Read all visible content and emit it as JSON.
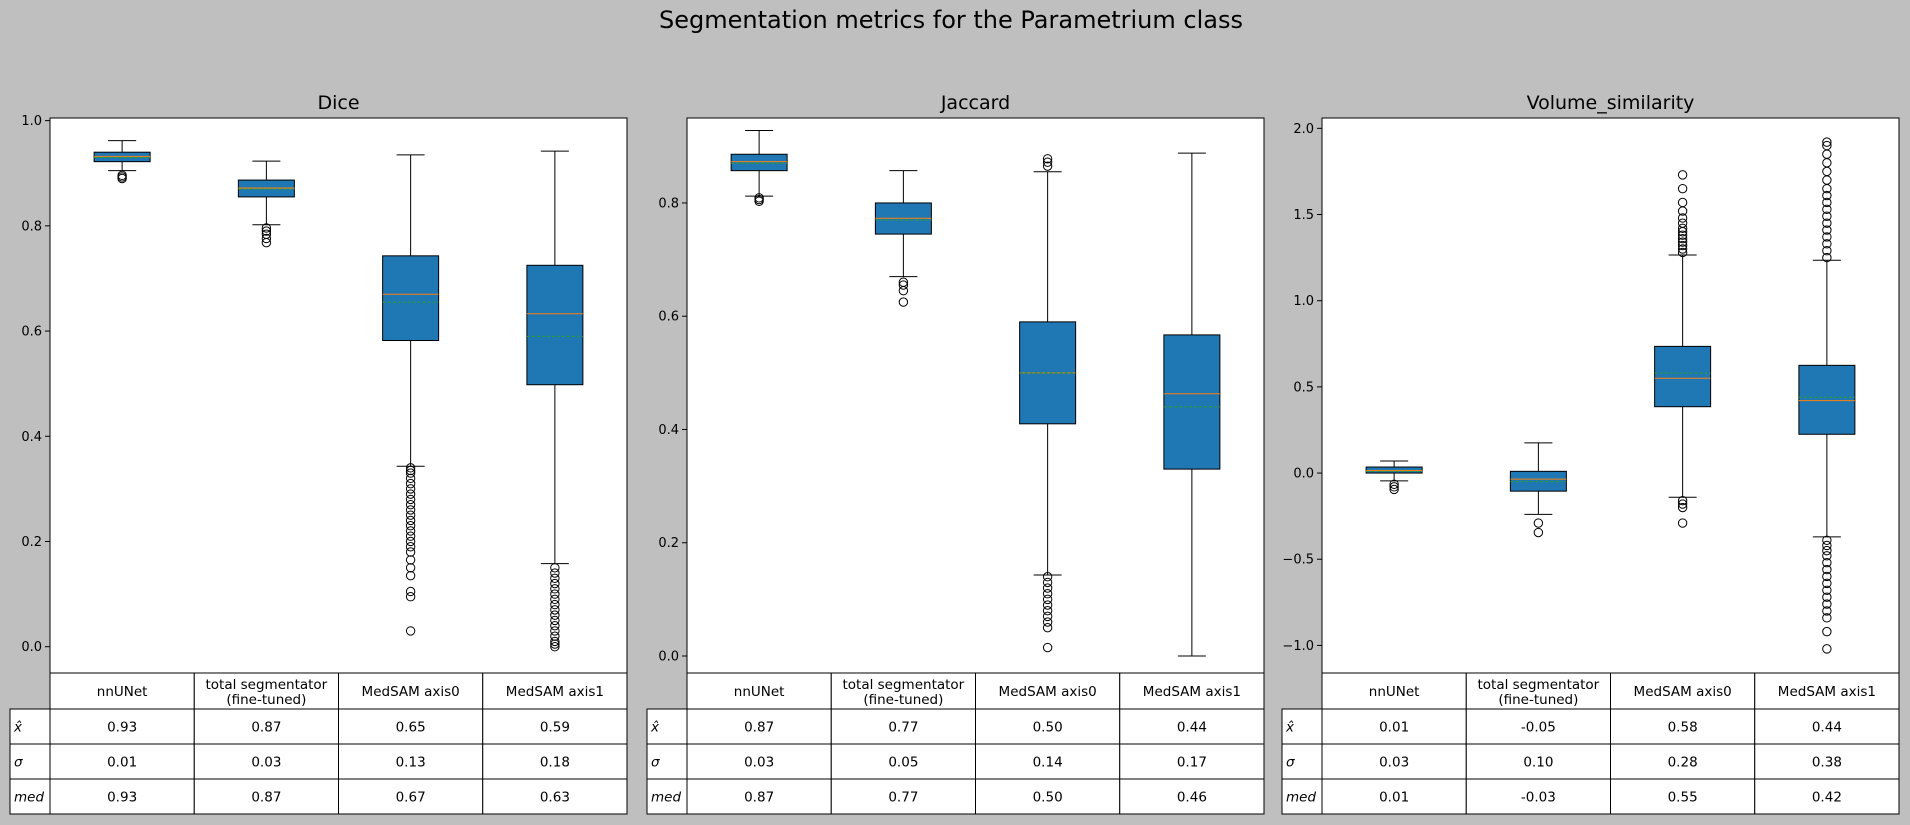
{
  "title": "Segmentation metrics for the Parametrium class",
  "colors": {
    "box": "#1f77b4",
    "median": "#ff7f0e",
    "mean": "#2ca02c",
    "background": "#bfbfbf"
  },
  "table_row_labels": [
    "x̂",
    "σ",
    "med"
  ],
  "chart_data": [
    {
      "type": "box",
      "title": "Dice",
      "ylim": [
        -0.05,
        1.005
      ],
      "yticks": [
        0.0,
        0.2,
        0.4,
        0.6,
        0.8,
        1.0
      ],
      "ytick_labels": [
        "0.0",
        "0.2",
        "0.4",
        "0.6",
        "0.8",
        "1.0"
      ],
      "categories": [
        "nnUNet",
        "total segmentator\n(fine-tuned)",
        "MedSAM axis0",
        "MedSAM axis1"
      ],
      "boxes": [
        {
          "whislo": 0.905,
          "q1": 0.922,
          "med": 0.932,
          "mean": 0.93,
          "q3": 0.94,
          "whishi": 0.962,
          "fliers": [
            0.89,
            0.893,
            0.896
          ]
        },
        {
          "whislo": 0.802,
          "q1": 0.855,
          "med": 0.872,
          "mean": 0.87,
          "q3": 0.887,
          "whishi": 0.923,
          "fliers": [
            0.768,
            0.776,
            0.784,
            0.79,
            0.796
          ]
        },
        {
          "whislo": 0.343,
          "q1": 0.582,
          "med": 0.67,
          "mean": 0.655,
          "q3": 0.743,
          "whishi": 0.935,
          "fliers": [
            0.03,
            0.095,
            0.105,
            0.135,
            0.15,
            0.165,
            0.18,
            0.19,
            0.2,
            0.21,
            0.22,
            0.23,
            0.24,
            0.25,
            0.26,
            0.27,
            0.28,
            0.29,
            0.3,
            0.31,
            0.32,
            0.33,
            0.335,
            0.34
          ]
        },
        {
          "whislo": 0.158,
          "q1": 0.498,
          "med": 0.633,
          "mean": 0.59,
          "q3": 0.725,
          "whishi": 0.942,
          "fliers": [
            0.0,
            0.005,
            0.01,
            0.02,
            0.03,
            0.04,
            0.05,
            0.06,
            0.07,
            0.08,
            0.09,
            0.1,
            0.11,
            0.12,
            0.13,
            0.14,
            0.15
          ]
        }
      ],
      "table": [
        [
          "0.93",
          "0.87",
          "0.65",
          "0.59"
        ],
        [
          "0.01",
          "0.03",
          "0.13",
          "0.18"
        ],
        [
          "0.93",
          "0.87",
          "0.67",
          "0.63"
        ]
      ]
    },
    {
      "type": "box",
      "title": "Jaccard",
      "ylim": [
        -0.03,
        0.95
      ],
      "yticks": [
        0.0,
        0.2,
        0.4,
        0.6,
        0.8
      ],
      "ytick_labels": [
        "0.0",
        "0.2",
        "0.4",
        "0.6",
        "0.8"
      ],
      "categories": [
        "nnUNet",
        "total segmentator\n(fine-tuned)",
        "MedSAM axis0",
        "MedSAM axis1"
      ],
      "boxes": [
        {
          "whislo": 0.812,
          "q1": 0.857,
          "med": 0.873,
          "mean": 0.87,
          "q3": 0.886,
          "whishi": 0.928,
          "fliers": [
            0.803,
            0.806,
            0.809
          ]
        },
        {
          "whislo": 0.67,
          "q1": 0.745,
          "med": 0.773,
          "mean": 0.77,
          "q3": 0.8,
          "whishi": 0.857,
          "fliers": [
            0.625,
            0.645,
            0.655,
            0.66
          ]
        },
        {
          "whislo": 0.143,
          "q1": 0.41,
          "med": 0.5,
          "mean": 0.5,
          "q3": 0.59,
          "whishi": 0.855,
          "fliers": [
            0.015,
            0.05,
            0.06,
            0.07,
            0.08,
            0.09,
            0.1,
            0.11,
            0.12,
            0.13,
            0.14,
            0.865,
            0.872,
            0.878
          ]
        },
        {
          "whislo": 0.0,
          "q1": 0.33,
          "med": 0.463,
          "mean": 0.44,
          "q3": 0.567,
          "whishi": 0.888,
          "fliers": []
        }
      ],
      "table": [
        [
          "0.87",
          "0.77",
          "0.50",
          "0.44"
        ],
        [
          "0.03",
          "0.05",
          "0.14",
          "0.17"
        ],
        [
          "0.87",
          "0.77",
          "0.50",
          "0.46"
        ]
      ]
    },
    {
      "type": "box",
      "title": "Volume_similarity",
      "ylim": [
        -1.16,
        2.06
      ],
      "yticks": [
        -1.0,
        -0.5,
        0.0,
        0.5,
        1.0,
        1.5,
        2.0
      ],
      "ytick_labels": [
        "−1.0",
        "−0.5",
        "0.0",
        "0.5",
        "1.0",
        "1.5",
        "2.0"
      ],
      "categories": [
        "nnUNet",
        "total segmentator\n(fine-tuned)",
        "MedSAM axis0",
        "MedSAM axis1"
      ],
      "boxes": [
        {
          "whislo": -0.045,
          "q1": 0.0,
          "med": 0.015,
          "mean": 0.01,
          "q3": 0.035,
          "whishi": 0.07,
          "fliers": [
            -0.065,
            -0.08,
            -0.095
          ]
        },
        {
          "whislo": -0.24,
          "q1": -0.105,
          "med": -0.035,
          "mean": -0.05,
          "q3": 0.01,
          "whishi": 0.175,
          "fliers": [
            -0.29,
            -0.345
          ]
        },
        {
          "whislo": -0.14,
          "q1": 0.385,
          "med": 0.55,
          "mean": 0.58,
          "q3": 0.735,
          "whishi": 1.265,
          "fliers": [
            -0.29,
            -0.2,
            -0.18,
            -0.16,
            1.28,
            1.3,
            1.32,
            1.34,
            1.36,
            1.38,
            1.4,
            1.42,
            1.45,
            1.48,
            1.52,
            1.57,
            1.65,
            1.73
          ]
        },
        {
          "whislo": -0.37,
          "q1": 0.225,
          "med": 0.42,
          "mean": 0.44,
          "q3": 0.625,
          "whishi": 1.235,
          "fliers": [
            -1.02,
            -0.92,
            -0.84,
            -0.8,
            -0.76,
            -0.72,
            -0.68,
            -0.64,
            -0.6,
            -0.56,
            -0.52,
            -0.48,
            -0.45,
            -0.42,
            -0.39,
            1.25,
            1.29,
            1.33,
            1.37,
            1.41,
            1.45,
            1.49,
            1.53,
            1.57,
            1.61,
            1.65,
            1.7,
            1.75,
            1.8,
            1.85,
            1.9,
            1.92
          ]
        }
      ],
      "table": [
        [
          "0.01",
          "-0.05",
          "0.58",
          "0.44"
        ],
        [
          "0.03",
          "0.10",
          "0.28",
          "0.38"
        ],
        [
          "0.01",
          "-0.03",
          "0.55",
          "0.42"
        ]
      ]
    }
  ]
}
